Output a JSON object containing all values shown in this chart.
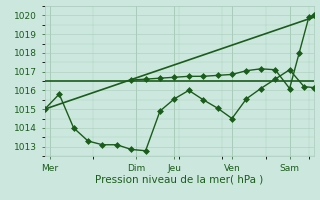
{
  "title": "",
  "xlabel": "Pression niveau de la mer( hPa )",
  "ylabel": "",
  "ylim": [
    1012.5,
    1020.5
  ],
  "xlim": [
    0,
    28
  ],
  "bg_color": "#cce8de",
  "grid_color": "#aaccbb",
  "line_color": "#1a5c1a",
  "tick_label_color": "#1a5c1a",
  "xlabel_color": "#1a5c1a",
  "yticks": [
    1013,
    1014,
    1015,
    1016,
    1017,
    1018,
    1019,
    1020
  ],
  "vline_positions": [
    0.5,
    9.5,
    13.5,
    19.5,
    25.5
  ],
  "vline_labels": [
    "Mer",
    "Dim",
    "Jeu",
    "Ven",
    "Sam"
  ],
  "series": [
    {
      "x": [
        0,
        1.5,
        3,
        4.5,
        6,
        7.5,
        9,
        10.5,
        12,
        13.5,
        15,
        16.5,
        18,
        19.5,
        21,
        22.5,
        24,
        25.5,
        27,
        28
      ],
      "y": [
        1015.0,
        1015.8,
        1014.0,
        1013.3,
        1013.1,
        1013.1,
        1012.85,
        1012.78,
        1014.9,
        1015.55,
        1016.0,
        1015.5,
        1015.05,
        1014.5,
        1015.55,
        1016.1,
        1016.6,
        1017.1,
        1016.2,
        1016.15
      ],
      "marker": "D",
      "markersize": 3,
      "linewidth": 1.0,
      "zorder": 4
    },
    {
      "x": [
        0,
        28
      ],
      "y": [
        1016.5,
        1016.5
      ],
      "marker": null,
      "markersize": 0,
      "linewidth": 1.2,
      "zorder": 3
    },
    {
      "x": [
        0,
        28
      ],
      "y": [
        1015.0,
        1019.9
      ],
      "marker": null,
      "markersize": 0,
      "linewidth": 1.2,
      "zorder": 3
    },
    {
      "x": [
        9,
        10.5,
        12,
        13.5,
        15,
        16.5,
        18,
        19.5,
        21,
        22.5,
        24,
        25.5,
        26.5,
        27.5,
        28
      ],
      "y": [
        1016.55,
        1016.6,
        1016.65,
        1016.7,
        1016.75,
        1016.75,
        1016.8,
        1016.85,
        1017.05,
        1017.15,
        1017.1,
        1016.1,
        1018.0,
        1019.9,
        1020.0
      ],
      "marker": "D",
      "markersize": 3,
      "linewidth": 1.0,
      "zorder": 4
    }
  ]
}
